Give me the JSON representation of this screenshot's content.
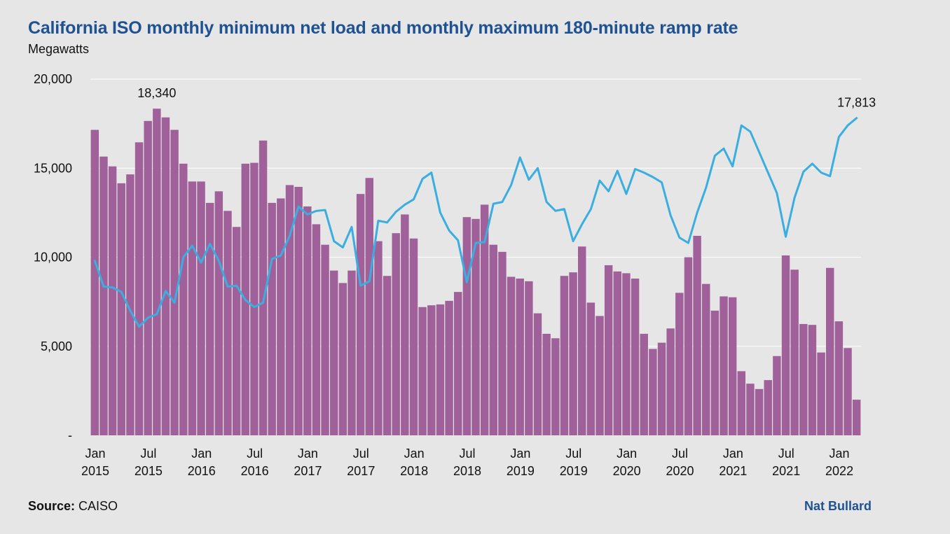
{
  "header": {
    "title": "California ISO monthly minimum net load and monthly maximum 180-minute ramp rate",
    "subtitle": "Megawatts"
  },
  "footer": {
    "source_label": "Source:",
    "source_value": "CAISO",
    "brand": "Nat Bullard"
  },
  "colors": {
    "background": "#e6e6e6",
    "bars": "#a0619a",
    "line": "#3aaee0",
    "title": "#1f5293",
    "grid": "#ffffff"
  },
  "chart_data": {
    "type": "bar",
    "ylim": [
      0,
      20000
    ],
    "yticks": [
      {
        "value": 20000,
        "label": "20,000"
      },
      {
        "value": 15000,
        "label": "15,000"
      },
      {
        "value": 10000,
        "label": "10,000"
      },
      {
        "value": 5000,
        "label": "5,000"
      },
      {
        "value": 0,
        "label": "-"
      }
    ],
    "grid": true,
    "x_start": "2015-01",
    "xticks": [
      {
        "index": 0,
        "line1": "Jan",
        "line2": "2015"
      },
      {
        "index": 6,
        "line1": "Jul",
        "line2": "2015"
      },
      {
        "index": 12,
        "line1": "Jan",
        "line2": "2016"
      },
      {
        "index": 18,
        "line1": "Jul",
        "line2": "2016"
      },
      {
        "index": 24,
        "line1": "Jan",
        "line2": "2017"
      },
      {
        "index": 30,
        "line1": "Jul",
        "line2": "2017"
      },
      {
        "index": 36,
        "line1": "Jan",
        "line2": "2018"
      },
      {
        "index": 42,
        "line1": "Jul",
        "line2": "2018"
      },
      {
        "index": 48,
        "line1": "Jan",
        "line2": "2019"
      },
      {
        "index": 54,
        "line1": "Jul",
        "line2": "2019"
      },
      {
        "index": 60,
        "line1": "Jan",
        "line2": "2020"
      },
      {
        "index": 66,
        "line1": "Jul",
        "line2": "2020"
      },
      {
        "index": 72,
        "line1": "Jan",
        "line2": "2021"
      },
      {
        "index": 78,
        "line1": "Jul",
        "line2": "2021"
      },
      {
        "index": 84,
        "line1": "Jan",
        "line2": "2022"
      }
    ],
    "series": [
      {
        "kind": "bar",
        "values": [
          17150,
          15650,
          15100,
          14150,
          14650,
          16450,
          17650,
          18340,
          17850,
          17150,
          15250,
          14250,
          14250,
          13050,
          13700,
          12600,
          11700,
          15250,
          15300,
          16550,
          13050,
          13300,
          14050,
          13950,
          12850,
          11850,
          10700,
          9250,
          8550,
          9250,
          13550,
          14450,
          10900,
          8950,
          11350,
          12400,
          11050,
          7200,
          7300,
          7350,
          7550,
          8050,
          12250,
          12150,
          12950,
          10700,
          10300,
          8900,
          8800,
          8650,
          6850,
          5700,
          5450,
          8950,
          9150,
          10600,
          7450,
          6700,
          9550,
          9200,
          9100,
          8800,
          5700,
          4850,
          5200,
          6000,
          8000,
          10000,
          11200,
          8500,
          7000,
          7800,
          7750,
          3600,
          2900,
          2600,
          3100,
          4450,
          10100,
          9300,
          6250,
          6200,
          4650,
          9400,
          6400,
          4900,
          2000
        ]
      },
      {
        "kind": "line",
        "values": [
          9800,
          8350,
          8300,
          8050,
          7000,
          6100,
          6600,
          6800,
          8100,
          7450,
          10000,
          10650,
          9700,
          10750,
          9800,
          8350,
          8400,
          7600,
          7200,
          7450,
          9900,
          10100,
          11200,
          12850,
          12400,
          12600,
          12650,
          10900,
          10550,
          11700,
          8400,
          8650,
          12050,
          11950,
          12550,
          12950,
          13250,
          14400,
          14750,
          12500,
          11500,
          10950,
          8600,
          10800,
          10850,
          13000,
          13100,
          14050,
          15600,
          14350,
          15000,
          13100,
          12600,
          12700,
          10900,
          11850,
          12700,
          14300,
          13700,
          14850,
          13550,
          14950,
          14750,
          14500,
          14200,
          12350,
          11100,
          10800,
          12500,
          13900,
          15700,
          16100,
          15100,
          17400,
          17050,
          15900,
          14750,
          13600,
          11150,
          13350,
          14800,
          15250,
          14750,
          14550,
          16750,
          17400,
          17813
        ]
      }
    ],
    "annotations": [
      {
        "series": 0,
        "index": 7,
        "text": "18,340"
      },
      {
        "series": 1,
        "index": 86,
        "text": "17,813"
      }
    ]
  }
}
